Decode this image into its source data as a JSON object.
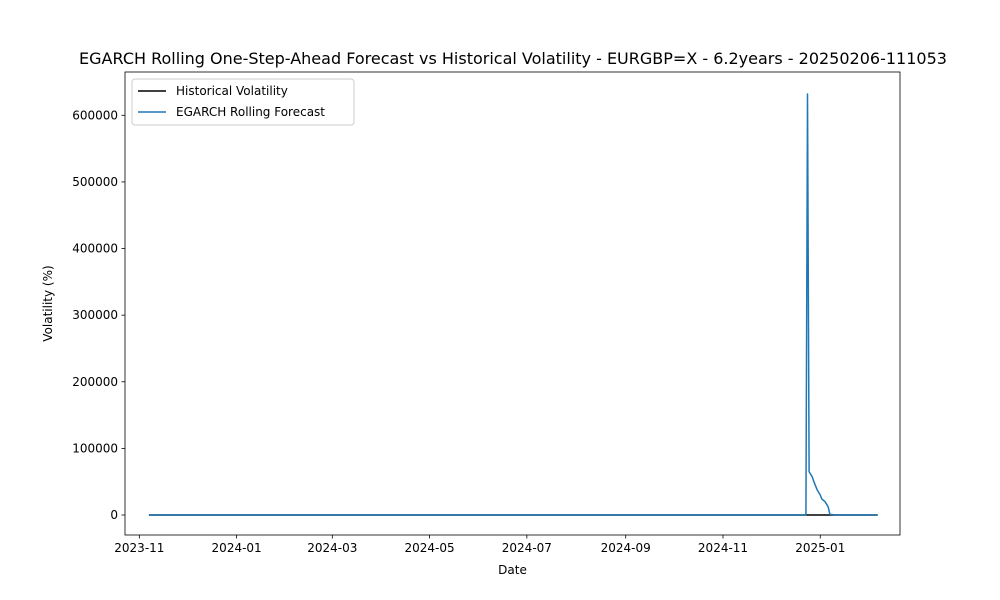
{
  "chart_data": {
    "type": "line",
    "title": "EGARCH Rolling One-Step-Ahead Forecast vs Historical Volatility - EURGBP=X - 6.2years - 20250206-111053",
    "xlabel": "Date",
    "ylabel": "Volatility (%)",
    "x_type": "date",
    "xlim": [
      "2023-10-23",
      "2025-02-20"
    ],
    "ylim": [
      -30000,
      665000
    ],
    "x_ticks": [
      {
        "date": "2023-11-01",
        "label": "2023-11"
      },
      {
        "date": "2024-01-01",
        "label": "2024-01"
      },
      {
        "date": "2024-03-01",
        "label": "2024-03"
      },
      {
        "date": "2024-05-01",
        "label": "2024-05"
      },
      {
        "date": "2024-07-01",
        "label": "2024-07"
      },
      {
        "date": "2024-09-01",
        "label": "2024-09"
      },
      {
        "date": "2024-11-01",
        "label": "2024-11"
      },
      {
        "date": "2025-01-01",
        "label": "2025-01"
      }
    ],
    "y_ticks": [
      0,
      100000,
      200000,
      300000,
      400000,
      500000,
      600000
    ],
    "y_tick_labels": [
      "0",
      "100000",
      "200000",
      "300000",
      "400000",
      "500000",
      "600000"
    ],
    "grid": false,
    "legend_position": "upper-left",
    "series": [
      {
        "name": "Historical Volatility",
        "color": "#000000",
        "points": [
          {
            "x": "2023-11-07",
            "y": 8
          },
          {
            "x": "2024-06-01",
            "y": 6
          },
          {
            "x": "2024-12-24",
            "y": 7
          },
          {
            "x": "2025-01-08",
            "y": 7
          },
          {
            "x": "2025-02-06",
            "y": 6
          }
        ]
      },
      {
        "name": "EGARCH Rolling Forecast",
        "color": "#1f77b4",
        "points": [
          {
            "x": "2023-11-07",
            "y": 8
          },
          {
            "x": "2024-06-01",
            "y": 7
          },
          {
            "x": "2024-12-23",
            "y": 8
          },
          {
            "x": "2024-12-24",
            "y": 632000
          },
          {
            "x": "2024-12-25",
            "y": 65000
          },
          {
            "x": "2024-12-27",
            "y": 57000
          },
          {
            "x": "2024-12-28",
            "y": 50000
          },
          {
            "x": "2024-12-30",
            "y": 38000
          },
          {
            "x": "2025-01-01",
            "y": 30000
          },
          {
            "x": "2025-01-02",
            "y": 24000
          },
          {
            "x": "2025-01-04",
            "y": 20000
          },
          {
            "x": "2025-01-06",
            "y": 12000
          },
          {
            "x": "2025-01-07",
            "y": 1000
          },
          {
            "x": "2025-01-09",
            "y": 500
          },
          {
            "x": "2025-01-15",
            "y": 100
          },
          {
            "x": "2025-02-06",
            "y": 10
          }
        ]
      }
    ]
  }
}
